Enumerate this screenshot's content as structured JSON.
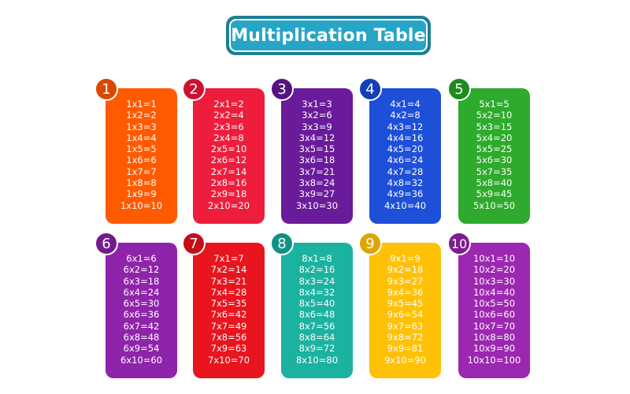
{
  "title": "Multiplication Table",
  "colors": {
    "banner_outer": "#1e7f97",
    "banner_inner": "#27a5c7",
    "text": "#ffffff"
  },
  "tables": [
    {
      "number": "1",
      "color": "#ff5a00",
      "badge_color": "#d94a00",
      "lines": [
        "1x1=1",
        "1x2=2",
        "1x3=3",
        "1x4=4",
        "1x5=5",
        "1x6=6",
        "1x7=7",
        "1x8=8",
        "1x9=9",
        "1x10=10"
      ]
    },
    {
      "number": "2",
      "color": "#ee1d3c",
      "badge_color": "#c9132f",
      "lines": [
        "2x1=2",
        "2x2=4",
        "2x3=6",
        "2x4=8",
        "2x5=10",
        "2x6=12",
        "2x7=14",
        "2x8=16",
        "2x9=18",
        "2x10=20"
      ]
    },
    {
      "number": "3",
      "color": "#6a1b9a",
      "badge_color": "#541480",
      "lines": [
        "3x1=3",
        "3x2=6",
        "3x3=9",
        "3x4=12",
        "3x5=15",
        "3x6=18",
        "3x7=21",
        "3x8=24",
        "3x9=27",
        "3x10=30"
      ]
    },
    {
      "number": "4",
      "color": "#1e4fd8",
      "badge_color": "#143fb8",
      "lines": [
        "4x1=4",
        "4x2=8",
        "4x3=12",
        "4x4=16",
        "4x5=20",
        "4x6=24",
        "4x7=28",
        "4x8=32",
        "4x9=36",
        "4x10=40"
      ]
    },
    {
      "number": "5",
      "color": "#2eaa2c",
      "badge_color": "#1f8a1f",
      "lines": [
        "5x1=5",
        "5x2=10",
        "5x3=15",
        "5x4=20",
        "5x5=25",
        "5x6=30",
        "5x7=35",
        "5x8=40",
        "5x9=45",
        "5x10=50"
      ]
    },
    {
      "number": "6",
      "color": "#8e24aa",
      "badge_color": "#741a8f",
      "lines": [
        "6x1=6",
        "6x2=12",
        "6x3=18",
        "6x4=24",
        "6x5=30",
        "6x6=36",
        "6x7=42",
        "6x8=48",
        "6x9=54",
        "6x10=60"
      ]
    },
    {
      "number": "7",
      "color": "#e8141e",
      "badge_color": "#c40d16",
      "lines": [
        "7x1=7",
        "7x2=14",
        "7x3=21",
        "7x4=28",
        "7x5=35",
        "7x6=42",
        "7x7=49",
        "7x8=56",
        "7x9=63",
        "7x10=70"
      ]
    },
    {
      "number": "8",
      "color": "#1bb2a0",
      "badge_color": "#109282",
      "lines": [
        "8x1=8",
        "8x2=16",
        "8x3=24",
        "8x4=32",
        "8x5=40",
        "8x6=48",
        "8x7=56",
        "8x8=64",
        "8x9=72",
        "8x10=80"
      ]
    },
    {
      "number": "9",
      "color": "#ffc107",
      "badge_color": "#e0a400",
      "lines": [
        "9x1=9",
        "9x2=18",
        "9x3=27",
        "9x4=36",
        "9x5=45",
        "9x6=54",
        "9x7=63",
        "9x8=72",
        "9x9=81",
        "9x10=90"
      ]
    },
    {
      "number": "10",
      "color": "#9c27b0",
      "badge_color": "#7e1d90",
      "lines": [
        "10x1=10",
        "10x2=20",
        "10x3=30",
        "10x4=40",
        "10x5=50",
        "10x6=60",
        "10x7=70",
        "10x8=80",
        "10x9=90",
        "10x10=100"
      ]
    }
  ]
}
